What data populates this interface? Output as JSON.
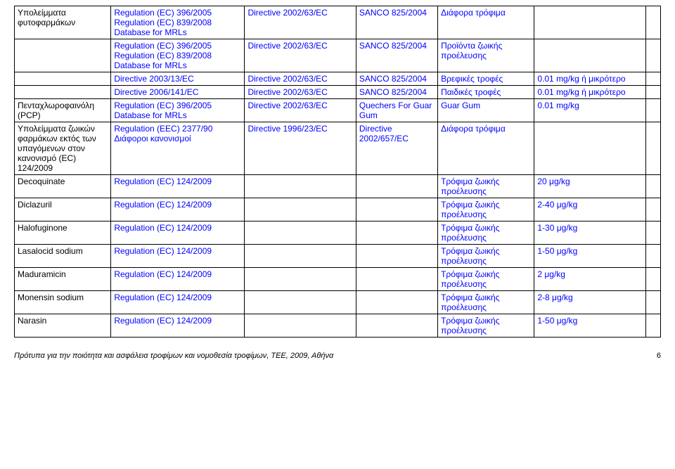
{
  "rows": [
    {
      "c1": "Υπολείμματα φυτοφαρμάκων",
      "c2": "Regulation (EC) 396/2005\nRegulation (EC) 839/2008\nDatabase for MRLs",
      "c3": "Directive 2002/63/EC",
      "c4": "SANCO 825/2004",
      "c5": "Διάφορα τρόφιμα",
      "c6": "",
      "c1cls": "black"
    },
    {
      "c1": "",
      "c2": "Regulation (EC) 396/2005\nRegulation (EC) 839/2008\nDatabase for MRLs",
      "c3": "Directive 2002/63/EC",
      "c4": "SANCO 825/2004",
      "c5": "Προϊόντα ζωικής προέλευσης",
      "c6": ""
    },
    {
      "c1": "",
      "c2": "Directive 2003/13/EC",
      "c3": "Directive 2002/63/EC",
      "c4": "SANCO 825/2004",
      "c5": "Βρεφικές τροφές",
      "c6": "0.01 mg/kg ή μικρότερο"
    },
    {
      "c1": "",
      "c2": "Directive 2006/141/EC",
      "c3": "Directive 2002/63/EC",
      "c4": "SANCO 825/2004",
      "c5": "Παιδικές τροφές",
      "c6": "0.01 mg/kg ή μικρότερο"
    },
    {
      "c1": "Πενταχλωροφαινόλη (PCP)",
      "c2": "Regulation (EC) 396/2005\nDatabase for MRLs",
      "c3": "Directive 2002/63/EC",
      "c4": "Quechers For Guar Gum",
      "c5": "Guar Gum",
      "c6": "0.01 mg/kg",
      "c1cls": "black"
    },
    {
      "c1": "Υπολείμματα ζωικών φαρμάκων εκτός των υπαγόμενων στον κανονισμό (EC) 124/2009",
      "c2": "Regulation (EEC) 2377/90\nΔιάφοροι κανονισμοί",
      "c3": "Directive 1996/23/EC",
      "c4": "Directive 2002/657/EC",
      "c5": "Διάφορα τρόφιμα",
      "c6": "",
      "c1cls": "black"
    },
    {
      "c1": "Decoquinate",
      "c2": "Regulation (EC) 124/2009",
      "c3": "",
      "c4": "",
      "c5": "Τρόφιμα ζωικής προέλευσης",
      "c6": "20 μg/kg"
    },
    {
      "c1": "Diclazuril",
      "c2": "Regulation (EC) 124/2009",
      "c3": "",
      "c4": "",
      "c5": "Τρόφιμα ζωικής προέλευσης",
      "c6": "2-40 μg/kg"
    },
    {
      "c1": "Halofuginone",
      "c2": "Regulation (EC) 124/2009",
      "c3": "",
      "c4": "",
      "c5": "Τρόφιμα ζωικής προέλευσης",
      "c6": "1-30 μg/kg"
    },
    {
      "c1": "Lasalocid sodium",
      "c2": "Regulation (EC) 124/2009",
      "c3": "",
      "c4": "",
      "c5": "Τρόφιμα ζωικής προέλευσης",
      "c6": "1-50 μg/kg"
    },
    {
      "c1": "Maduramicin",
      "c2": "Regulation (EC) 124/2009",
      "c3": "",
      "c4": "",
      "c5": "Τρόφιμα ζωικής προέλευσης",
      "c6": "2 μg/kg"
    },
    {
      "c1": "Monensin sodium",
      "c2": "Regulation (EC) 124/2009",
      "c3": "",
      "c4": "",
      "c5": "Τρόφιμα ζωικής προέλευσης",
      "c6": "2-8 μg/kg"
    },
    {
      "c1": "Narasin",
      "c2": "Regulation (EC) 124/2009",
      "c3": "",
      "c4": "",
      "c5": "Τρόφιμα ζωικής προέλευσης",
      "c6": "1-50 μg/kg"
    }
  ],
  "footer_text": "Πρότυπα για την ποιότητα και ασφάλεια τροφίμων και νομοθεσία τροφίμων, ΤΕΕ, 2009, Αθήνα",
  "page_number": "6"
}
